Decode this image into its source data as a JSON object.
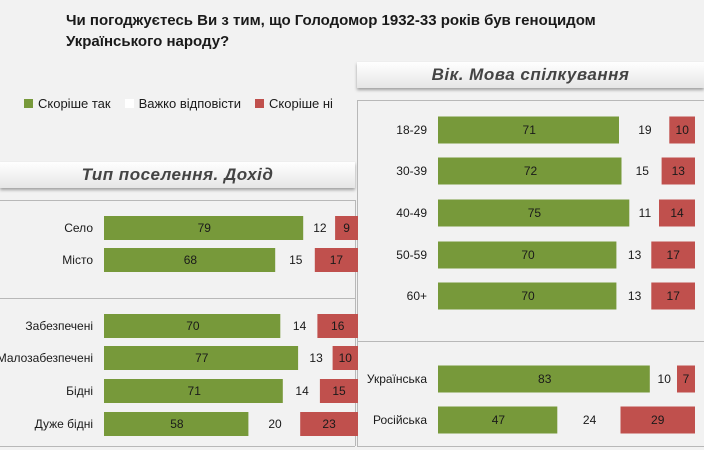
{
  "title": "Чи погоджуєтесь Ви з тим, що Голодомор 1932-33 років був геноцидом Українського народу?",
  "legend": [
    {
      "name": "Скоріше так",
      "color": "#77993a"
    },
    {
      "name": "Важко відповісти",
      "color": "#f2f2f2"
    },
    {
      "name": "Скоріше ні",
      "color": "#c0504d"
    }
  ],
  "left_panel_title": "Тип поселення. Дохід",
  "right_panel_title": "Вік. Мова спілкування",
  "chart_data": [
    {
      "type": "bar",
      "orientation": "horizontal",
      "stacked": true,
      "title": "Тип поселення. Дохід",
      "categories": [
        "Село",
        "Місто",
        "Забезпечені",
        "Малозабезпечені",
        "Бідні",
        "Дуже бідні"
      ],
      "series": [
        {
          "name": "Скоріше так",
          "values": [
            79,
            68,
            70,
            77,
            71,
            58
          ]
        },
        {
          "name": "Важко відповісти",
          "values": [
            12,
            15,
            14,
            13,
            14,
            20
          ]
        },
        {
          "name": "Скоріше ні",
          "values": [
            9,
            17,
            16,
            10,
            15,
            23
          ]
        }
      ],
      "xlim": [
        0,
        100
      ]
    },
    {
      "type": "bar",
      "orientation": "horizontal",
      "stacked": true,
      "title": "Вік. Мова спілкування",
      "categories": [
        "18-29",
        "30-39",
        "40-49",
        "50-59",
        "60+",
        "Українська",
        "Російська"
      ],
      "series": [
        {
          "name": "Скоріше так",
          "values": [
            71,
            72,
            75,
            70,
            70,
            83,
            47
          ]
        },
        {
          "name": "Важко відповісти",
          "values": [
            19,
            15,
            11,
            13,
            13,
            10,
            24
          ]
        },
        {
          "name": "Скоріше ні",
          "values": [
            10,
            13,
            14,
            17,
            17,
            7,
            29
          ]
        }
      ],
      "xlim": [
        0,
        100
      ]
    }
  ]
}
